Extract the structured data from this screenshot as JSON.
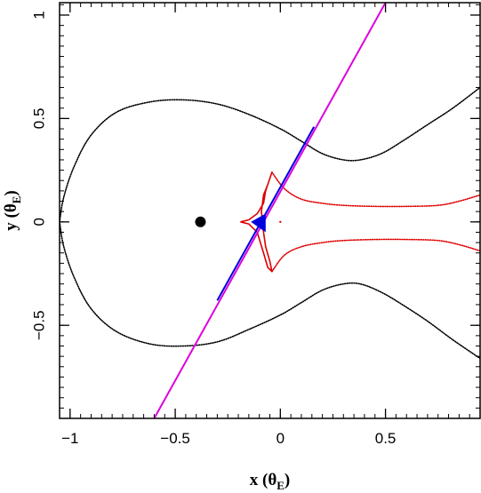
{
  "chart_data": {
    "type": "scatter",
    "title": "",
    "xlabel": {
      "main": "x (θ",
      "sub": "E",
      "close": ")"
    },
    "ylabel": {
      "main": "y (θ",
      "sub": "E",
      "close": ")"
    },
    "xlim": [
      -1.05,
      0.95
    ],
    "ylim": [
      -0.95,
      1.06
    ],
    "x_ticks": [
      {
        "value": -1,
        "label": "−1"
      },
      {
        "value": -0.5,
        "label": "−0.5"
      },
      {
        "value": 0,
        "label": "0"
      },
      {
        "value": 0.5,
        "label": "0.5"
      }
    ],
    "y_ticks": [
      {
        "value": -0.5,
        "label": "−0.5"
      },
      {
        "value": 0,
        "label": "0"
      },
      {
        "value": 0.5,
        "label": "0.5"
      },
      {
        "value": 1,
        "label": "1"
      }
    ],
    "minor_tick_step": 0.05,
    "grid": false,
    "lens_point": {
      "x": -0.38,
      "y": 0.0,
      "color": "#000000"
    },
    "critical_curve": {
      "color": "#000000",
      "upper": [
        [
          -1.05,
          0.0
        ],
        [
          -1.03,
          0.12
        ],
        [
          -0.98,
          0.27
        ],
        [
          -0.9,
          0.42
        ],
        [
          -0.78,
          0.53
        ],
        [
          -0.62,
          0.58
        ],
        [
          -0.46,
          0.59
        ],
        [
          -0.3,
          0.57
        ],
        [
          -0.15,
          0.52
        ],
        [
          0.0,
          0.45
        ],
        [
          0.1,
          0.39
        ],
        [
          0.2,
          0.33
        ],
        [
          0.3,
          0.3
        ],
        [
          0.38,
          0.3
        ],
        [
          0.48,
          0.33
        ],
        [
          0.58,
          0.39
        ],
        [
          0.7,
          0.47
        ],
        [
          0.82,
          0.55
        ],
        [
          0.95,
          0.65
        ]
      ],
      "lower": [
        [
          -1.05,
          0.0
        ],
        [
          -1.03,
          -0.12
        ],
        [
          -0.98,
          -0.27
        ],
        [
          -0.9,
          -0.42
        ],
        [
          -0.78,
          -0.53
        ],
        [
          -0.62,
          -0.59
        ],
        [
          -0.46,
          -0.6
        ],
        [
          -0.3,
          -0.58
        ],
        [
          -0.15,
          -0.52
        ],
        [
          0.0,
          -0.45
        ],
        [
          0.1,
          -0.39
        ],
        [
          0.2,
          -0.33
        ],
        [
          0.3,
          -0.3
        ],
        [
          0.38,
          -0.3
        ],
        [
          0.48,
          -0.34
        ],
        [
          0.58,
          -0.4
        ],
        [
          0.7,
          -0.48
        ],
        [
          0.82,
          -0.57
        ],
        [
          0.95,
          -0.66
        ]
      ]
    },
    "caustic": {
      "color": "#dd0000",
      "cusp_shape": [
        [
          -0.19,
          0.0
        ],
        [
          -0.15,
          0.01
        ],
        [
          -0.11,
          0.04
        ],
        [
          -0.08,
          0.09
        ],
        [
          -0.07,
          0.15
        ],
        [
          -0.05,
          0.21
        ],
        [
          -0.04,
          0.24
        ],
        [
          -0.06,
          0.18
        ],
        [
          -0.08,
          0.13
        ],
        [
          -0.09,
          0.05
        ],
        [
          -0.08,
          -0.05
        ],
        [
          -0.07,
          -0.12
        ],
        [
          -0.05,
          -0.19
        ],
        [
          -0.04,
          -0.24
        ],
        [
          -0.06,
          -0.22
        ],
        [
          -0.08,
          -0.15
        ],
        [
          -0.11,
          -0.05
        ],
        [
          -0.15,
          -0.01
        ],
        [
          -0.19,
          0.0
        ]
      ],
      "upper_tail": [
        [
          -0.04,
          0.24
        ],
        [
          0.02,
          0.16
        ],
        [
          0.1,
          0.11
        ],
        [
          0.2,
          0.09
        ],
        [
          0.3,
          0.08
        ],
        [
          0.45,
          0.075
        ],
        [
          0.6,
          0.075
        ],
        [
          0.75,
          0.08
        ],
        [
          0.85,
          0.1
        ],
        [
          0.95,
          0.13
        ]
      ],
      "lower_tail": [
        [
          -0.04,
          -0.24
        ],
        [
          0.02,
          -0.16
        ],
        [
          0.1,
          -0.12
        ],
        [
          0.2,
          -0.1
        ],
        [
          0.3,
          -0.09
        ],
        [
          0.45,
          -0.085
        ],
        [
          0.6,
          -0.085
        ],
        [
          0.75,
          -0.09
        ],
        [
          0.85,
          -0.11
        ],
        [
          0.95,
          -0.14
        ]
      ],
      "isolated_point": {
        "x": 0.0,
        "y": 0.0
      }
    },
    "trajectory": {
      "color": "#dd00dd",
      "start": [
        -0.6,
        -0.95
      ],
      "end": [
        0.5,
        1.06
      ]
    },
    "trajectory_highlight": {
      "color": "#0000dd",
      "start": [
        -0.3,
        -0.38
      ],
      "end": [
        0.16,
        0.46
      ]
    },
    "source_marker": {
      "color": "#0000dd",
      "tip": [
        -0.14,
        0.0
      ],
      "base_top": [
        -0.07,
        0.04
      ],
      "base_bottom": [
        -0.07,
        -0.05
      ]
    }
  }
}
